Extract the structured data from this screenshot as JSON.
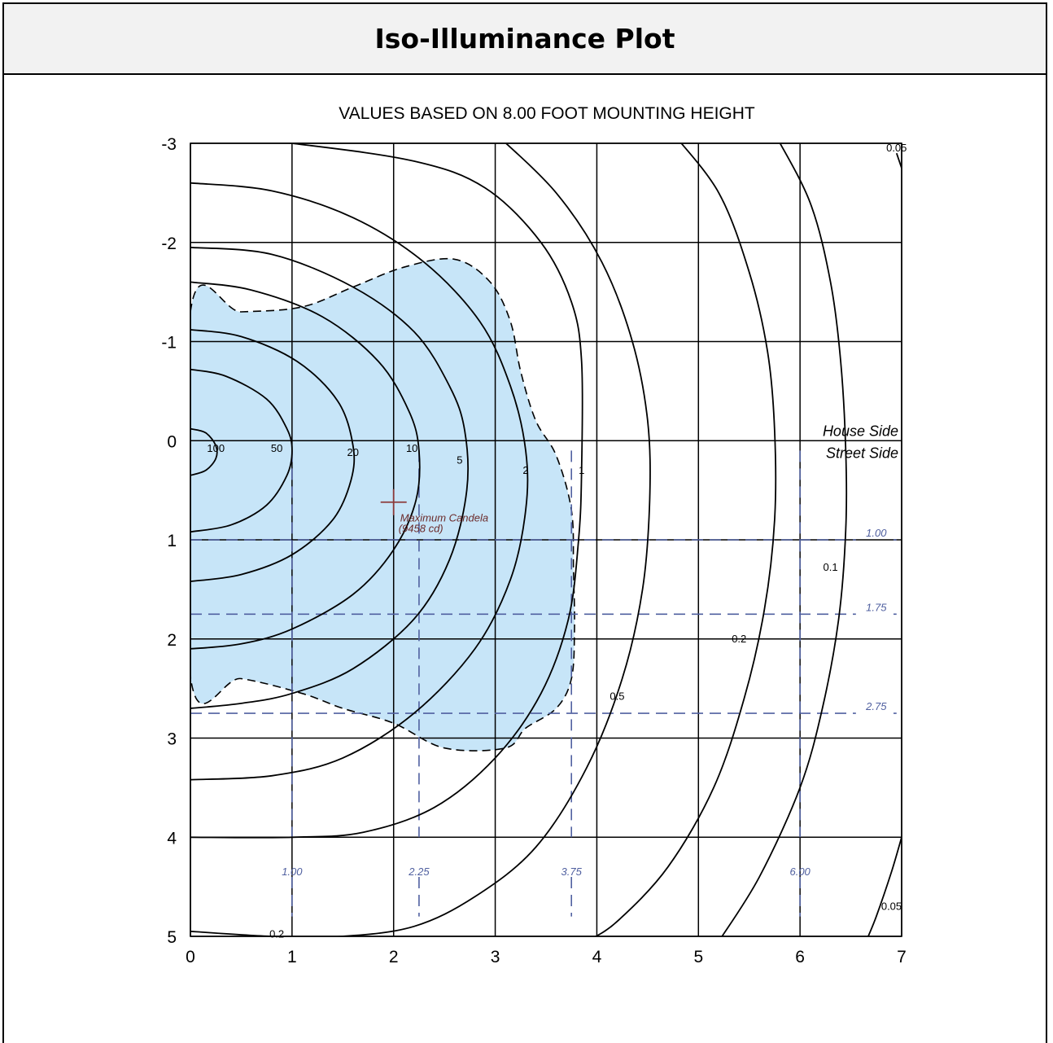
{
  "header": {
    "title": "Iso-Illuminance Plot"
  },
  "chart_data": {
    "type": "contour",
    "title": "Iso-Illuminance Plot",
    "subtitle": "VALUES BASED ON 8.00 FOOT MOUNTING HEIGHT",
    "xlim": [
      0,
      7
    ],
    "ylim": [
      -3,
      5
    ],
    "y_axis_direction": "increasing downward",
    "x_ticks": [
      0,
      1,
      2,
      3,
      4,
      5,
      6,
      7
    ],
    "y_ticks": [
      -3,
      -2,
      -1,
      0,
      1,
      2,
      3,
      4,
      5
    ],
    "grid": true,
    "side_labels": {
      "house": "House Side",
      "street": "Street Side"
    },
    "maximum_candela": {
      "x": 2.0,
      "y": 0.62,
      "label": "Maximum Candela",
      "value_label": "(9458 cd)"
    },
    "dashed_verticals": [
      {
        "x": 1.0,
        "label": "1.00"
      },
      {
        "x": 2.25,
        "label": "2.25"
      },
      {
        "x": 3.75,
        "label": "3.75"
      },
      {
        "x": 6.0,
        "label": "6.00"
      }
    ],
    "dashed_horizontals": [
      {
        "y": 1.0,
        "label": "1.00"
      },
      {
        "y": 1.75,
        "label": "1.75"
      },
      {
        "y": 2.75,
        "label": "2.75"
      }
    ],
    "contours": [
      {
        "value": 100,
        "label": "100",
        "points": [
          [
            0,
            -0.12
          ],
          [
            0.15,
            -0.08
          ],
          [
            0.25,
            0.05
          ],
          [
            0.25,
            0.18
          ],
          [
            0.15,
            0.3
          ],
          [
            0,
            0.35
          ]
        ]
      },
      {
        "value": 50,
        "label": "50",
        "points": [
          [
            0,
            -0.72
          ],
          [
            0.35,
            -0.65
          ],
          [
            0.75,
            -0.42
          ],
          [
            0.95,
            -0.12
          ],
          [
            1.0,
            0.1
          ],
          [
            0.95,
            0.35
          ],
          [
            0.75,
            0.65
          ],
          [
            0.4,
            0.85
          ],
          [
            0,
            0.92
          ]
        ]
      },
      {
        "value": 20,
        "label": "20",
        "points": [
          [
            0,
            -1.12
          ],
          [
            0.5,
            -1.05
          ],
          [
            1.05,
            -0.8
          ],
          [
            1.45,
            -0.4
          ],
          [
            1.6,
            0.05
          ],
          [
            1.58,
            0.4
          ],
          [
            1.4,
            0.8
          ],
          [
            1.0,
            1.15
          ],
          [
            0.5,
            1.35
          ],
          [
            0,
            1.42
          ]
        ]
      },
      {
        "value": 10,
        "label": "10",
        "points": [
          [
            0,
            -1.6
          ],
          [
            0.6,
            -1.52
          ],
          [
            1.3,
            -1.25
          ],
          [
            1.85,
            -0.8
          ],
          [
            2.15,
            -0.3
          ],
          [
            2.25,
            0.1
          ],
          [
            2.22,
            0.6
          ],
          [
            2.0,
            1.1
          ],
          [
            1.6,
            1.55
          ],
          [
            1.0,
            1.9
          ],
          [
            0.5,
            2.05
          ],
          [
            0,
            2.1
          ]
        ]
      },
      {
        "value": 5,
        "label": "5",
        "points": [
          [
            0,
            -1.95
          ],
          [
            0.8,
            -1.88
          ],
          [
            1.6,
            -1.55
          ],
          [
            2.2,
            -1.1
          ],
          [
            2.55,
            -0.55
          ],
          [
            2.7,
            -0.1
          ],
          [
            2.72,
            0.5
          ],
          [
            2.55,
            1.2
          ],
          [
            2.2,
            1.8
          ],
          [
            1.6,
            2.3
          ],
          [
            1.0,
            2.55
          ],
          [
            0.5,
            2.65
          ],
          [
            0,
            2.7
          ]
        ]
      },
      {
        "value": 2,
        "label": "2",
        "points": [
          [
            0,
            -2.6
          ],
          [
            0.8,
            -2.52
          ],
          [
            1.6,
            -2.25
          ],
          [
            2.3,
            -1.8
          ],
          [
            2.85,
            -1.2
          ],
          [
            3.15,
            -0.55
          ],
          [
            3.3,
            0.1
          ],
          [
            3.3,
            0.7
          ],
          [
            3.15,
            1.4
          ],
          [
            2.8,
            2.1
          ],
          [
            2.2,
            2.75
          ],
          [
            1.5,
            3.2
          ],
          [
            0.8,
            3.38
          ],
          [
            0,
            3.42
          ]
        ]
      },
      {
        "value": 1,
        "label": "1",
        "points": [
          [
            0,
            -3.1
          ],
          [
            1.0,
            -3.0
          ],
          [
            2.2,
            -2.82
          ],
          [
            2.9,
            -2.55
          ],
          [
            3.45,
            -2.0
          ],
          [
            3.75,
            -1.4
          ],
          [
            3.85,
            -0.8
          ],
          [
            3.85,
            0.3
          ],
          [
            3.82,
            1.0
          ],
          [
            3.72,
            1.8
          ],
          [
            3.45,
            2.55
          ],
          [
            3.0,
            3.2
          ],
          [
            2.4,
            3.7
          ],
          [
            1.7,
            3.95
          ],
          [
            1.0,
            4.0
          ],
          [
            0,
            4.0
          ]
        ]
      },
      {
        "value": 0.5,
        "label": "0.5",
        "points": [
          [
            3.0,
            -3.1
          ],
          [
            3.6,
            -2.5
          ],
          [
            4.05,
            -1.8
          ],
          [
            4.35,
            -1.0
          ],
          [
            4.5,
            -0.2
          ],
          [
            4.52,
            0.6
          ],
          [
            4.45,
            1.5
          ],
          [
            4.25,
            2.4
          ],
          [
            3.9,
            3.3
          ],
          [
            3.4,
            4.1
          ],
          [
            2.8,
            4.6
          ],
          [
            2.2,
            4.9
          ],
          [
            1.5,
            5.0
          ],
          [
            0.8,
            5.0
          ],
          [
            0,
            4.95
          ]
        ]
      },
      {
        "value": 0.2,
        "label": "0.2",
        "points": [
          [
            4.75,
            -3.1
          ],
          [
            5.2,
            -2.5
          ],
          [
            5.5,
            -1.7
          ],
          [
            5.68,
            -0.9
          ],
          [
            5.75,
            -0.1
          ],
          [
            5.75,
            0.8
          ],
          [
            5.65,
            1.7
          ],
          [
            5.45,
            2.6
          ],
          [
            5.15,
            3.5
          ],
          [
            4.7,
            4.3
          ],
          [
            4.2,
            4.85
          ],
          [
            3.9,
            5.05
          ]
        ]
      },
      {
        "value": 0.1,
        "label": "0.1",
        "points": [
          [
            5.75,
            -3.1
          ],
          [
            6.1,
            -2.4
          ],
          [
            6.3,
            -1.6
          ],
          [
            6.4,
            -0.8
          ],
          [
            6.45,
            0.1
          ],
          [
            6.45,
            0.9
          ],
          [
            6.38,
            1.8
          ],
          [
            6.22,
            2.7
          ],
          [
            6.0,
            3.5
          ],
          [
            5.6,
            4.4
          ],
          [
            5.2,
            5.05
          ]
        ]
      },
      {
        "value": 0.05,
        "label": "0.05",
        "points": [
          [
            6.95,
            -2.9
          ],
          [
            7.0,
            -2.75
          ]
        ]
      },
      {
        "value": 0.05,
        "label": "0.05",
        "points": [
          [
            7.0,
            4.0
          ],
          [
            6.9,
            4.35
          ],
          [
            6.75,
            4.8
          ],
          [
            6.65,
            5.05
          ]
        ]
      }
    ],
    "shaded_region": {
      "label": "half-maximum candela trace",
      "points": [
        [
          0,
          -1.3
        ],
        [
          0.5,
          -1.3
        ],
        [
          1.1,
          -1.35
        ],
        [
          1.6,
          -1.55
        ],
        [
          2.1,
          -1.75
        ],
        [
          2.6,
          -1.83
        ],
        [
          2.95,
          -1.6
        ],
        [
          3.15,
          -1.2
        ],
        [
          3.25,
          -0.7
        ],
        [
          3.4,
          -0.2
        ],
        [
          3.6,
          0.15
        ],
        [
          3.75,
          0.7
        ],
        [
          3.77,
          1.3
        ],
        [
          3.78,
          1.9
        ],
        [
          3.75,
          2.4
        ],
        [
          3.6,
          2.7
        ],
        [
          3.3,
          2.9
        ],
        [
          3.1,
          3.1
        ],
        [
          2.5,
          3.1
        ],
        [
          2.0,
          2.85
        ],
        [
          1.5,
          2.7
        ],
        [
          1.1,
          2.55
        ],
        [
          0.5,
          2.4
        ],
        [
          0,
          2.38
        ]
      ]
    }
  }
}
